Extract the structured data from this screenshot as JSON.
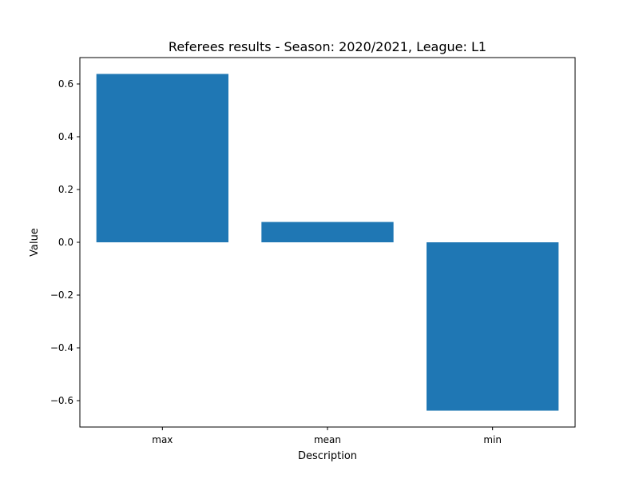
{
  "chart_data": {
    "type": "bar",
    "title": "Referees results - Season: 2020/2021, League: L1",
    "xlabel": "Description",
    "ylabel": "Value",
    "categories": [
      "max",
      "mean",
      "min"
    ],
    "values": [
      0.638,
      0.077,
      -0.638
    ],
    "ylim": [
      -0.7,
      0.7
    ],
    "yticks": [
      0.6,
      0.4,
      0.2,
      0.0,
      -0.2,
      -0.4,
      -0.6
    ],
    "ytick_labels": [
      "0.6",
      "0.4",
      "0.2",
      "0.0",
      "−0.2",
      "−0.4",
      "−0.6"
    ],
    "grid": false,
    "legend": "none",
    "bar_color": "#1f77b4"
  }
}
